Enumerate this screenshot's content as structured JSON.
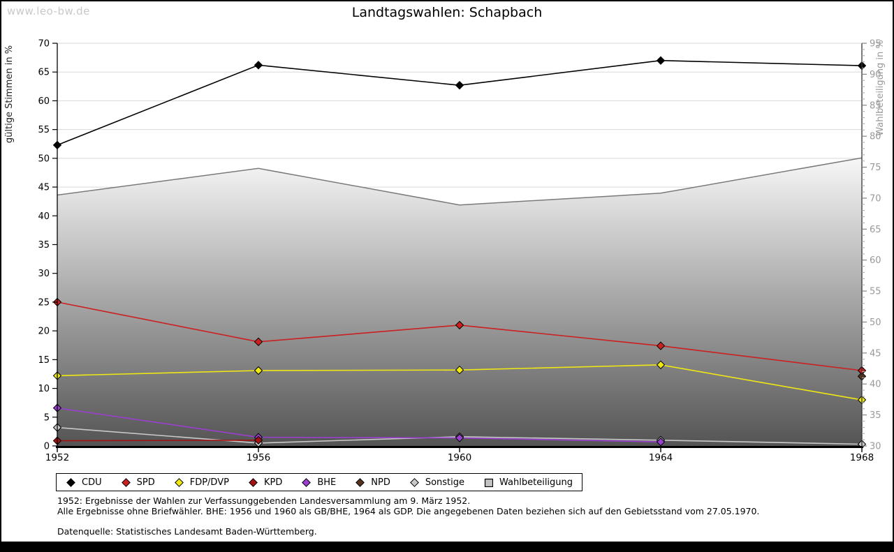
{
  "page": {
    "watermark": "www.leo-bw.de",
    "title": "Landtagswahlen: Schapbach",
    "footnotes": {
      "line1": "1952: Ergebnisse der Wahlen zur Verfassunggebenden Landesversammlung am 9. März 1952.",
      "line2": "Alle Ergebnisse ohne Briefwähler. BHE: 1956 und 1960 als GB/BHE, 1964 als GDP. Die angegebenen Daten beziehen sich auf den Gebietsstand vom 27.05.1970.",
      "source": "Datenquelle: Statistisches Landesamt Baden-Württemberg."
    }
  },
  "chart_data": {
    "type": "line",
    "title": "Landtagswahlen: Schapbach",
    "x_labels": [
      "1952",
      "1956",
      "1960",
      "1964",
      "1968"
    ],
    "left_axis": {
      "label": "gültige Stimmen in %",
      "min": 0,
      "max": 70,
      "tick_step": 5,
      "color": "#000000"
    },
    "right_axis": {
      "label": "Wahlbeteiligung in %",
      "min": 30,
      "max": 95,
      "tick_step": 5,
      "minor_tick_step": 1,
      "color": "#999999"
    },
    "grid": "horizontal",
    "gridline_color": "#d9d9d9",
    "legend_position": "bottom",
    "series": [
      {
        "name": "CDU",
        "axis": "left",
        "kind": "line",
        "marker": "diamond",
        "color": "#000000",
        "values": [
          52.3,
          66.2,
          62.7,
          67.0,
          66.1
        ]
      },
      {
        "name": "SPD",
        "axis": "left",
        "kind": "line",
        "marker": "diamond",
        "color": "#cc1f1f",
        "values": [
          25.0,
          18.1,
          21.0,
          17.4,
          13.1
        ]
      },
      {
        "name": "FDP/DVP",
        "axis": "left",
        "kind": "line",
        "marker": "diamond",
        "color": "#efe813",
        "values": [
          12.2,
          13.1,
          13.2,
          14.1,
          8.0
        ]
      },
      {
        "name": "KPD",
        "axis": "left",
        "kind": "line",
        "marker": "diamond",
        "color": "#a31111",
        "values": [
          0.9,
          1.0,
          null,
          null,
          null
        ]
      },
      {
        "name": "BHE",
        "axis": "left",
        "kind": "line",
        "marker": "diamond",
        "color": "#9b3fd1",
        "values": [
          6.6,
          1.5,
          1.4,
          0.7,
          null
        ]
      },
      {
        "name": "NPD",
        "axis": "left",
        "kind": "line",
        "marker": "diamond",
        "color": "#57331f",
        "values": [
          null,
          null,
          null,
          null,
          12.1
        ]
      },
      {
        "name": "Sonstige",
        "axis": "left",
        "kind": "line",
        "marker": "diamond",
        "color": "#c9c9c9",
        "values": [
          3.2,
          0.5,
          1.6,
          1.0,
          0.3
        ]
      },
      {
        "name": "Wahlbeteiligung",
        "axis": "right",
        "kind": "area",
        "marker": "square",
        "color": "#7a7a7a",
        "fill_gradient": [
          "#f7f7f7",
          "#545454"
        ],
        "values": [
          70.5,
          74.8,
          68.9,
          70.8,
          76.5
        ]
      }
    ]
  }
}
